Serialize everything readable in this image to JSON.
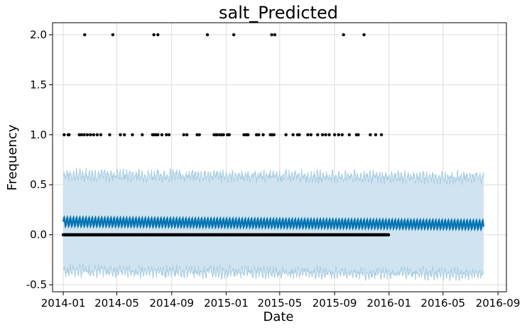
{
  "chart_data": {
    "type": "line",
    "title": "salt_Predicted",
    "xlabel": "Date",
    "ylabel": "Frequency",
    "x_ticks": [
      "2014-01",
      "2014-05",
      "2014-09",
      "2015-01",
      "2015-05",
      "2015-09",
      "2016-01",
      "2016-05",
      "2016-09"
    ],
    "y_ticks": [
      -0.5,
      0.0,
      0.5,
      1.0,
      1.5,
      2.0
    ],
    "ylim": [
      -0.57,
      2.12
    ],
    "xlim": [
      "2013-12-08",
      "2016-09-20"
    ],
    "grid": true,
    "legend": "none",
    "colors": {
      "forecast_line": "#0072B2",
      "uncertainty_band": "#cfe3f0",
      "band_edge": "#aacde3",
      "observed_points": "#000000",
      "grid": "#dcdcdc"
    },
    "series": [
      {
        "role": "forecast",
        "x_start": "2014-01-01",
        "x_end": "2016-07-31",
        "mean": 0.13,
        "weekly_amplitude": 0.045,
        "upper_mean": 0.6,
        "lower_mean": -0.36
      },
      {
        "role": "observed",
        "zeros_range": [
          "2014-01-01",
          "2015-12-31"
        ],
        "ones": [
          "2014-01-03",
          "2014-01-12",
          "2014-01-14",
          "2014-02-06",
          "2014-02-11",
          "2014-02-17",
          "2014-02-24",
          "2014-03-03",
          "2014-03-10",
          "2014-03-18",
          "2014-03-26",
          "2014-04-15",
          "2014-05-09",
          "2014-05-18",
          "2014-06-05",
          "2014-06-27",
          "2014-07-20",
          "2014-07-24",
          "2014-07-28",
          "2014-08-01",
          "2014-08-10",
          "2014-08-20",
          "2014-08-26",
          "2014-09-28",
          "2014-10-05",
          "2014-10-28",
          "2014-11-02",
          "2014-12-05",
          "2014-12-09",
          "2014-12-12",
          "2014-12-18",
          "2014-12-22",
          "2014-12-26",
          "2015-01-04",
          "2015-01-08",
          "2015-02-10",
          "2015-02-15",
          "2015-02-19",
          "2015-03-10",
          "2015-03-15",
          "2015-03-25",
          "2015-04-10",
          "2015-04-14",
          "2015-04-18",
          "2015-05-15",
          "2015-05-31",
          "2015-06-10",
          "2015-06-14",
          "2015-07-03",
          "2015-07-10",
          "2015-07-25",
          "2015-08-05",
          "2015-08-12",
          "2015-08-20",
          "2015-09-01",
          "2015-09-10",
          "2015-09-18",
          "2015-10-04",
          "2015-10-20",
          "2015-10-24",
          "2015-11-20",
          "2015-12-02",
          "2015-12-15"
        ],
        "twos": [
          "2014-02-18",
          "2014-04-22",
          "2014-07-23",
          "2014-08-01",
          "2014-11-20",
          "2015-01-18",
          "2015-04-13",
          "2015-04-20",
          "2015-09-21",
          "2015-11-06"
        ]
      }
    ]
  }
}
